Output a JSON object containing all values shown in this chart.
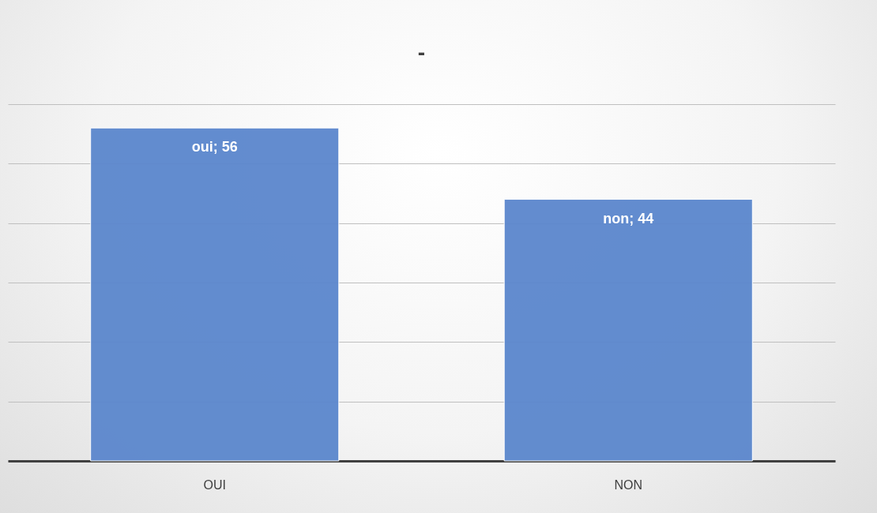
{
  "chart_data": {
    "type": "bar",
    "title": "-",
    "categories": [
      "OUI",
      "NON"
    ],
    "values": [
      56,
      44
    ],
    "value_labels": [
      "oui; 56",
      "non; 44"
    ],
    "color": "#5b87cd",
    "ylim": [
      0,
      60
    ],
    "yticks": [
      0,
      10,
      20,
      30,
      40,
      50,
      60
    ],
    "grid": "y",
    "tick_labels": "x"
  }
}
